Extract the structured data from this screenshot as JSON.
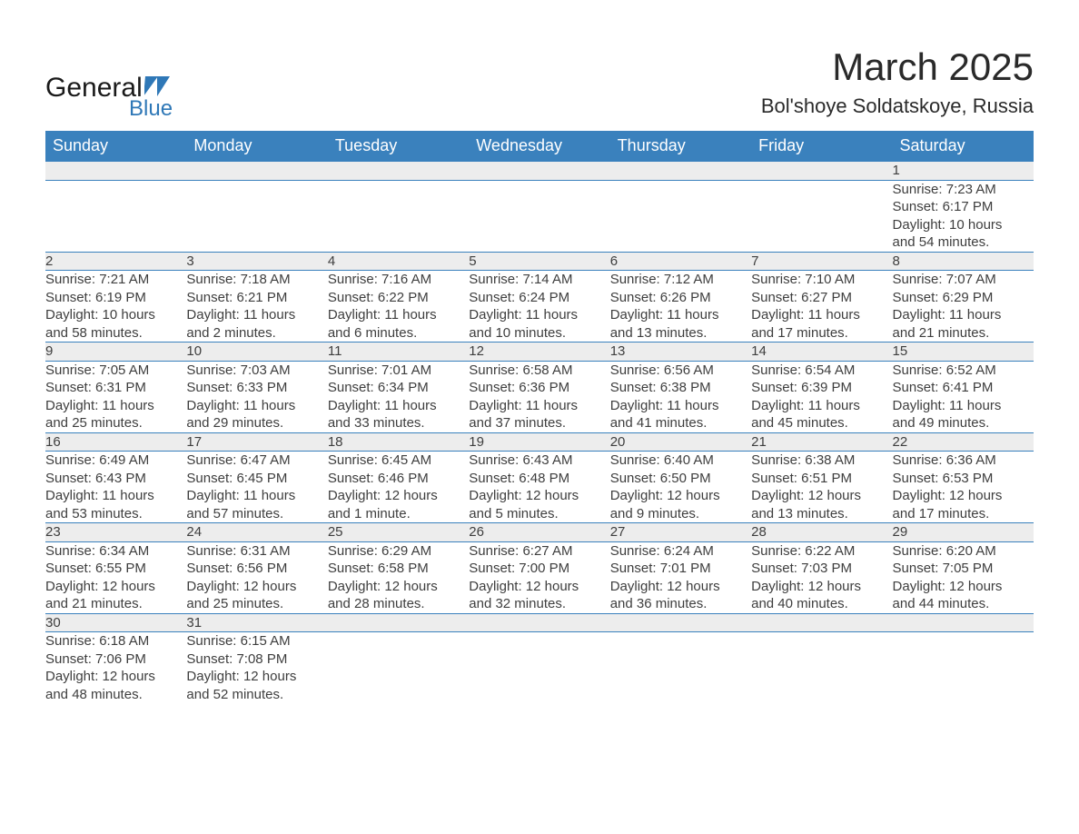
{
  "logo": {
    "text_general": "General",
    "text_blue": "Blue"
  },
  "title": "March 2025",
  "location": "Bol'shoye Soldatskoye, Russia",
  "colors": {
    "header_bg": "#3a81bd",
    "header_text": "#ffffff",
    "daynum_bg": "#ededed",
    "row_border": "#3a81bd",
    "body_text": "#3e3e3e",
    "logo_accent": "#2f78b7"
  },
  "day_headers": [
    "Sunday",
    "Monday",
    "Tuesday",
    "Wednesday",
    "Thursday",
    "Friday",
    "Saturday"
  ],
  "weeks": [
    [
      null,
      null,
      null,
      null,
      null,
      null,
      {
        "n": "1",
        "sunrise": "Sunrise: 7:23 AM",
        "sunset": "Sunset: 6:17 PM",
        "daylight1": "Daylight: 10 hours",
        "daylight2": "and 54 minutes."
      }
    ],
    [
      {
        "n": "2",
        "sunrise": "Sunrise: 7:21 AM",
        "sunset": "Sunset: 6:19 PM",
        "daylight1": "Daylight: 10 hours",
        "daylight2": "and 58 minutes."
      },
      {
        "n": "3",
        "sunrise": "Sunrise: 7:18 AM",
        "sunset": "Sunset: 6:21 PM",
        "daylight1": "Daylight: 11 hours",
        "daylight2": "and 2 minutes."
      },
      {
        "n": "4",
        "sunrise": "Sunrise: 7:16 AM",
        "sunset": "Sunset: 6:22 PM",
        "daylight1": "Daylight: 11 hours",
        "daylight2": "and 6 minutes."
      },
      {
        "n": "5",
        "sunrise": "Sunrise: 7:14 AM",
        "sunset": "Sunset: 6:24 PM",
        "daylight1": "Daylight: 11 hours",
        "daylight2": "and 10 minutes."
      },
      {
        "n": "6",
        "sunrise": "Sunrise: 7:12 AM",
        "sunset": "Sunset: 6:26 PM",
        "daylight1": "Daylight: 11 hours",
        "daylight2": "and 13 minutes."
      },
      {
        "n": "7",
        "sunrise": "Sunrise: 7:10 AM",
        "sunset": "Sunset: 6:27 PM",
        "daylight1": "Daylight: 11 hours",
        "daylight2": "and 17 minutes."
      },
      {
        "n": "8",
        "sunrise": "Sunrise: 7:07 AM",
        "sunset": "Sunset: 6:29 PM",
        "daylight1": "Daylight: 11 hours",
        "daylight2": "and 21 minutes."
      }
    ],
    [
      {
        "n": "9",
        "sunrise": "Sunrise: 7:05 AM",
        "sunset": "Sunset: 6:31 PM",
        "daylight1": "Daylight: 11 hours",
        "daylight2": "and 25 minutes."
      },
      {
        "n": "10",
        "sunrise": "Sunrise: 7:03 AM",
        "sunset": "Sunset: 6:33 PM",
        "daylight1": "Daylight: 11 hours",
        "daylight2": "and 29 minutes."
      },
      {
        "n": "11",
        "sunrise": "Sunrise: 7:01 AM",
        "sunset": "Sunset: 6:34 PM",
        "daylight1": "Daylight: 11 hours",
        "daylight2": "and 33 minutes."
      },
      {
        "n": "12",
        "sunrise": "Sunrise: 6:58 AM",
        "sunset": "Sunset: 6:36 PM",
        "daylight1": "Daylight: 11 hours",
        "daylight2": "and 37 minutes."
      },
      {
        "n": "13",
        "sunrise": "Sunrise: 6:56 AM",
        "sunset": "Sunset: 6:38 PM",
        "daylight1": "Daylight: 11 hours",
        "daylight2": "and 41 minutes."
      },
      {
        "n": "14",
        "sunrise": "Sunrise: 6:54 AM",
        "sunset": "Sunset: 6:39 PM",
        "daylight1": "Daylight: 11 hours",
        "daylight2": "and 45 minutes."
      },
      {
        "n": "15",
        "sunrise": "Sunrise: 6:52 AM",
        "sunset": "Sunset: 6:41 PM",
        "daylight1": "Daylight: 11 hours",
        "daylight2": "and 49 minutes."
      }
    ],
    [
      {
        "n": "16",
        "sunrise": "Sunrise: 6:49 AM",
        "sunset": "Sunset: 6:43 PM",
        "daylight1": "Daylight: 11 hours",
        "daylight2": "and 53 minutes."
      },
      {
        "n": "17",
        "sunrise": "Sunrise: 6:47 AM",
        "sunset": "Sunset: 6:45 PM",
        "daylight1": "Daylight: 11 hours",
        "daylight2": "and 57 minutes."
      },
      {
        "n": "18",
        "sunrise": "Sunrise: 6:45 AM",
        "sunset": "Sunset: 6:46 PM",
        "daylight1": "Daylight: 12 hours",
        "daylight2": "and 1 minute."
      },
      {
        "n": "19",
        "sunrise": "Sunrise: 6:43 AM",
        "sunset": "Sunset: 6:48 PM",
        "daylight1": "Daylight: 12 hours",
        "daylight2": "and 5 minutes."
      },
      {
        "n": "20",
        "sunrise": "Sunrise: 6:40 AM",
        "sunset": "Sunset: 6:50 PM",
        "daylight1": "Daylight: 12 hours",
        "daylight2": "and 9 minutes."
      },
      {
        "n": "21",
        "sunrise": "Sunrise: 6:38 AM",
        "sunset": "Sunset: 6:51 PM",
        "daylight1": "Daylight: 12 hours",
        "daylight2": "and 13 minutes."
      },
      {
        "n": "22",
        "sunrise": "Sunrise: 6:36 AM",
        "sunset": "Sunset: 6:53 PM",
        "daylight1": "Daylight: 12 hours",
        "daylight2": "and 17 minutes."
      }
    ],
    [
      {
        "n": "23",
        "sunrise": "Sunrise: 6:34 AM",
        "sunset": "Sunset: 6:55 PM",
        "daylight1": "Daylight: 12 hours",
        "daylight2": "and 21 minutes."
      },
      {
        "n": "24",
        "sunrise": "Sunrise: 6:31 AM",
        "sunset": "Sunset: 6:56 PM",
        "daylight1": "Daylight: 12 hours",
        "daylight2": "and 25 minutes."
      },
      {
        "n": "25",
        "sunrise": "Sunrise: 6:29 AM",
        "sunset": "Sunset: 6:58 PM",
        "daylight1": "Daylight: 12 hours",
        "daylight2": "and 28 minutes."
      },
      {
        "n": "26",
        "sunrise": "Sunrise: 6:27 AM",
        "sunset": "Sunset: 7:00 PM",
        "daylight1": "Daylight: 12 hours",
        "daylight2": "and 32 minutes."
      },
      {
        "n": "27",
        "sunrise": "Sunrise: 6:24 AM",
        "sunset": "Sunset: 7:01 PM",
        "daylight1": "Daylight: 12 hours",
        "daylight2": "and 36 minutes."
      },
      {
        "n": "28",
        "sunrise": "Sunrise: 6:22 AM",
        "sunset": "Sunset: 7:03 PM",
        "daylight1": "Daylight: 12 hours",
        "daylight2": "and 40 minutes."
      },
      {
        "n": "29",
        "sunrise": "Sunrise: 6:20 AM",
        "sunset": "Sunset: 7:05 PM",
        "daylight1": "Daylight: 12 hours",
        "daylight2": "and 44 minutes."
      }
    ],
    [
      {
        "n": "30",
        "sunrise": "Sunrise: 6:18 AM",
        "sunset": "Sunset: 7:06 PM",
        "daylight1": "Daylight: 12 hours",
        "daylight2": "and 48 minutes."
      },
      {
        "n": "31",
        "sunrise": "Sunrise: 6:15 AM",
        "sunset": "Sunset: 7:08 PM",
        "daylight1": "Daylight: 12 hours",
        "daylight2": "and 52 minutes."
      },
      null,
      null,
      null,
      null,
      null
    ]
  ]
}
